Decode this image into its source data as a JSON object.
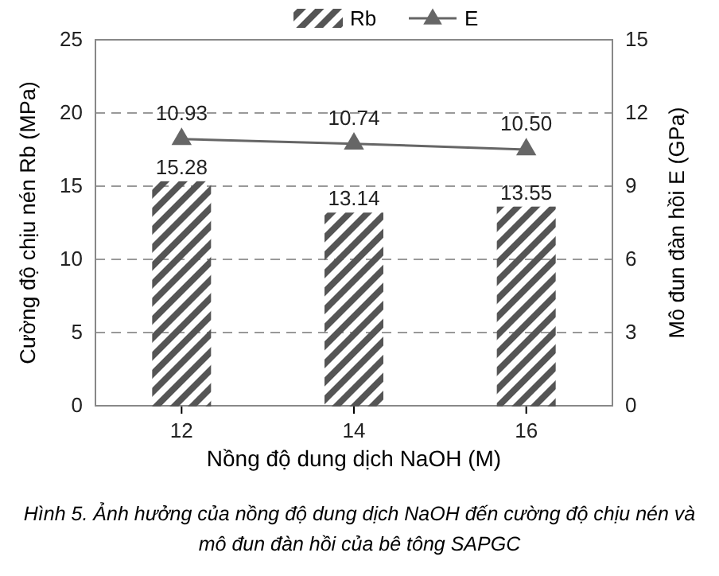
{
  "chart_data": {
    "type": "line",
    "categories": [
      "12",
      "14",
      "16"
    ],
    "series": [
      {
        "name": "Rb",
        "type": "bar",
        "color": "#555555",
        "values": [
          15.28,
          13.14,
          13.55
        ]
      },
      {
        "name": "E",
        "axis": "y2",
        "color": "#666666",
        "values": [
          10.93,
          10.74,
          10.5
        ],
        "value_labels": [
          "10.93",
          "10.74",
          "10.50"
        ]
      }
    ],
    "xlabel": "Nồng độ dung dịch NaOH (M)",
    "ylabel": "Cường độ chịu nén Rb (MPa)",
    "y2label": "Mô đun đàn hồi E (GPa)",
    "ylim": [
      0,
      25
    ],
    "yticks": [
      0,
      5,
      10,
      15,
      20,
      25
    ],
    "y2lim": [
      0,
      15
    ],
    "y2ticks": [
      0,
      3,
      6,
      9,
      12,
      15
    ],
    "grid": "y",
    "legend": "top",
    "marker": "triangle",
    "line_style": "solid",
    "data_labels": true,
    "annotations": [
      "Hình 5. Ảnh hưởng của nồng độ dung dịch NaOH đến cường độ chịu nén và mô đun đàn hồi của bê tông SAPGC"
    ]
  }
}
